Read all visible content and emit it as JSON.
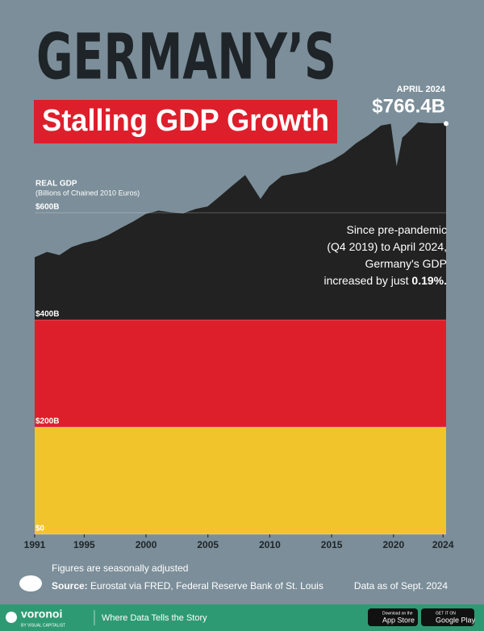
{
  "chart_data": {
    "type": "area",
    "title": "GERMANY’S",
    "subtitle": "Stalling GDP Growth",
    "y_label": "REAL GDP",
    "y_sublabel": "(Billions of Chained 2010 Euros)",
    "end_annotation": {
      "date": "APRIL 2024",
      "value": "$766.4B"
    },
    "annotation": {
      "lines": [
        "Since pre-pandemic",
        "(Q4 2019) to April 2024,",
        "Germany's GDP",
        "increased by just"
      ],
      "highlight": "0.19%."
    },
    "x": [
      1991,
      1992,
      1993,
      1994,
      1995,
      1996,
      1997,
      1998,
      1999,
      2000,
      2001,
      2002,
      2003,
      2004,
      2005,
      2006,
      2007,
      2008,
      2009.25,
      2010,
      2011,
      2012,
      2013,
      2014,
      2015,
      2016,
      2017,
      2018,
      2019,
      2019.75,
      2020.25,
      2020.75,
      2021,
      2022,
      2023,
      2024.25
    ],
    "values": [
      516,
      526,
      520,
      535,
      543,
      548,
      558,
      571,
      583,
      597,
      603,
      600,
      598,
      606,
      611,
      630,
      650,
      669,
      624,
      649,
      668,
      672,
      676,
      687,
      696,
      710,
      729,
      744,
      762,
      765,
      681,
      740,
      745,
      768,
      766,
      766.4
    ],
    "colors": [
      "#222222",
      "#dd1f2c",
      "#f2c42c"
    ],
    "xlim": [
      1991,
      2024.25
    ],
    "xticks": [
      1991,
      1995,
      2000,
      2005,
      2010,
      2015,
      2020,
      2024
    ],
    "ylim": [
      0,
      850
    ],
    "yticks": [
      {
        "value": 0,
        "label": "$0"
      },
      {
        "value": 200,
        "label": "$200B"
      },
      {
        "value": 400,
        "label": "$400B"
      },
      {
        "value": 600,
        "label": "$600B"
      }
    ],
    "grid": true,
    "note": "Figures are seasonally adjusted",
    "source_label": "Source:",
    "source": "Eurostat via FRED, Federal Reserve Bank of St. Louis",
    "data_date": "Data as of Sept. 2024"
  },
  "footer": {
    "brand": "voronoi",
    "brand_sub": "BY VISUAL CAPITALIST",
    "tagline": "Where Data Tells the Story",
    "app_store_small": "Download on the",
    "app_store": "App Store",
    "google_small": "GET IT ON",
    "google": "Google Play"
  }
}
